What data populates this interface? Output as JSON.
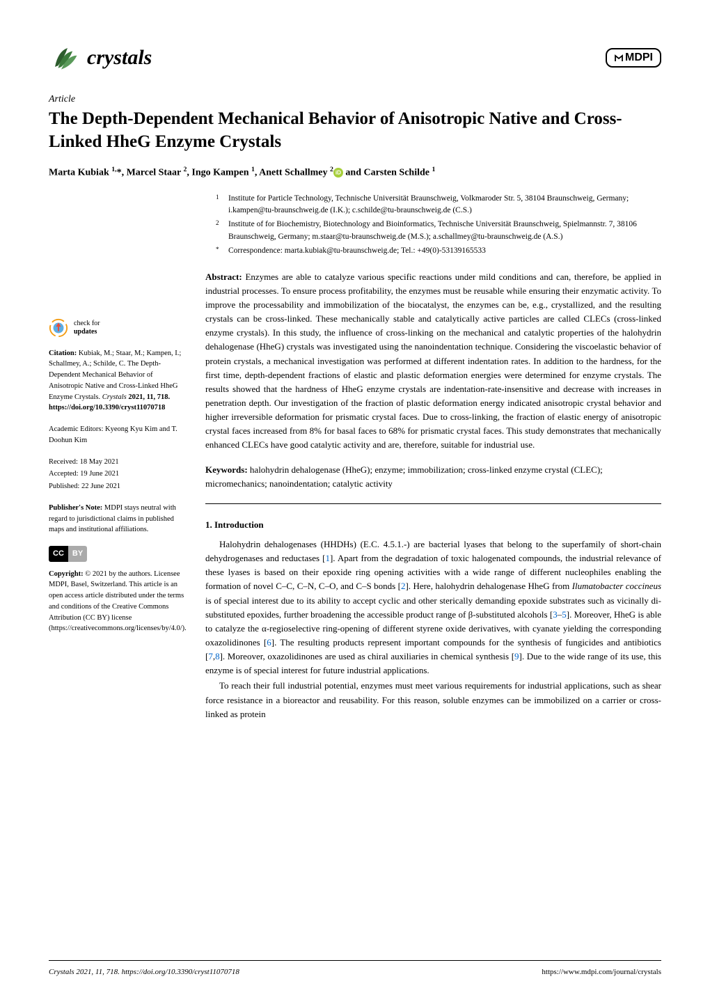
{
  "journal": {
    "name": "crystals",
    "publisher_logo": "MDPI"
  },
  "article": {
    "type": "Article",
    "title": "The Depth-Dependent Mechanical Behavior of Anisotropic Native and Cross-Linked HheG Enzyme Crystals",
    "authors_html": "Marta Kubiak <sup>1,</sup>*, Marcel Staar <sup>2</sup>, Ingo Kampen <sup>1</sup>, Anett Schallmey <sup>2</sup><span class='orcid'></span> and Carsten Schilde <sup>1</sup>"
  },
  "affiliations": [
    {
      "num": "1",
      "text": "Institute for Particle Technology, Technische Universität Braunschweig, Volkmaroder Str. 5, 38104 Braunschweig, Germany; i.kampen@tu-braunschweig.de (I.K.); c.schilde@tu-braunschweig.de (C.S.)"
    },
    {
      "num": "2",
      "text": "Institute of for Biochemistry, Biotechnology and Bioinformatics, Technische Universität Braunschweig, Spielmannstr. 7, 38106 Braunschweig, Germany; m.staar@tu-braunschweig.de (M.S.); a.schallmey@tu-braunschweig.de (A.S.)"
    },
    {
      "num": "*",
      "text": "Correspondence: marta.kubiak@tu-braunschweig.de; Tel.: +49(0)-53139165533"
    }
  ],
  "abstract": {
    "label": "Abstract:",
    "text": "Enzymes are able to catalyze various specific reactions under mild conditions and can, therefore, be applied in industrial processes. To ensure process profitability, the enzymes must be reusable while ensuring their enzymatic activity. To improve the processability and immobilization of the biocatalyst, the enzymes can be, e.g., crystallized, and the resulting crystals can be cross-linked. These mechanically stable and catalytically active particles are called CLECs (cross-linked enzyme crystals). In this study, the influence of cross-linking on the mechanical and catalytic properties of the halohydrin dehalogenase (HheG) crystals was investigated using the nanoindentation technique. Considering the viscoelastic behavior of protein crystals, a mechanical investigation was performed at different indentation rates. In addition to the hardness, for the first time, depth-dependent fractions of elastic and plastic deformation energies were determined for enzyme crystals. The results showed that the hardness of HheG enzyme crystals are indentation-rate-insensitive and decrease with increases in penetration depth. Our investigation of the fraction of plastic deformation energy indicated anisotropic crystal behavior and higher irreversible deformation for prismatic crystal faces. Due to cross-linking, the fraction of elastic energy of anisotropic crystal faces increased from 8% for basal faces to 68% for prismatic crystal faces. This study demonstrates that mechanically enhanced CLECs have good catalytic activity and are, therefore, suitable for industrial use."
  },
  "keywords": {
    "label": "Keywords:",
    "text": "halohydrin dehalogenase (HheG); enzyme; immobilization; cross-linked enzyme crystal (CLEC); micromechanics; nanoindentation; catalytic activity"
  },
  "section": {
    "heading": "1. Introduction",
    "para1_html": "Halohydrin dehalogenases (HHDHs) (E.C. 4.5.1.-) are bacterial lyases that belong to the superfamily of short-chain dehydrogenases and reductases [<span class='ref-link'>1</span>]. Apart from the degradation of toxic halogenated compounds, the industrial relevance of these lyases is based on their epoxide ring opening activities with a wide range of different nucleophiles enabling the formation of novel C–C, C–N, C–O, and C–S bonds [<span class='ref-link'>2</span>]. Here, halohydrin dehalogenase HheG from <span class='italic'>Ilumatobacter coccineus</span> is of special interest due to its ability to accept cyclic and other sterically demanding epoxide substrates such as vicinally di-substituted epoxides, further broadening the accessible product range of β-substituted alcohols [<span class='ref-link'>3</span>–<span class='ref-link'>5</span>]. Moreover, HheG is able to catalyze the α-regioselective ring-opening of different styrene oxide derivatives, with cyanate yielding the corresponding oxazolidinones [<span class='ref-link'>6</span>]. The resulting products represent important compounds for the synthesis of fungicides and antibiotics [<span class='ref-link'>7</span>,<span class='ref-link'>8</span>]. Moreover, oxazolidinones are used as chiral auxiliaries in chemical synthesis [<span class='ref-link'>9</span>]. Due to the wide range of its use, this enzyme is of special interest for future industrial applications.",
    "para2_html": "To reach their full industrial potential, enzymes must meet various requirements for industrial applications, such as shear force resistance in a bioreactor and reusability. For this reason, soluble enzymes can be immobilized on a carrier or cross-linked as protein"
  },
  "sidebar": {
    "check_updates": {
      "line1": "check for",
      "line2": "updates"
    },
    "citation": {
      "label": "Citation:",
      "text": "Kubiak, M.; Staar, M.; Kampen, I.; Schallmey, A.; Schilde, C. The Depth-Dependent Mechanical Behavior of Anisotropic Native and Cross-Linked HheG Enzyme Crystals. ",
      "journal_ref": "Crystals",
      "year_vol": " 2021, 11, 718. https://doi.org/10.3390/cryst11070718"
    },
    "editors": "Academic Editors: Kyeong Kyu Kim and T. Doohun Kim",
    "received": "Received: 18 May 2021",
    "accepted": "Accepted: 19 June 2021",
    "published": "Published: 22 June 2021",
    "publisher_note": {
      "label": "Publisher's Note:",
      "text": "MDPI stays neutral with regard to jurisdictional claims in published maps and institutional affiliations."
    },
    "cc": "CC",
    "by": "BY",
    "copyright": {
      "label": "Copyright:",
      "text": "© 2021 by the authors. Licensee MDPI, Basel, Switzerland. This article is an open access article distributed under the terms and conditions of the Creative Commons Attribution (CC BY) license (https://creativecommons.org/licenses/by/4.0/)."
    }
  },
  "footer": {
    "left": "Crystals 2021, 11, 718. https://doi.org/10.3390/cryst11070718",
    "right": "https://www.mdpi.com/journal/crystals"
  },
  "colors": {
    "text": "#000000",
    "background": "#ffffff",
    "link": "#0066cc",
    "orcid": "#a6ce39",
    "leaf1": "#3b7a3b",
    "leaf2": "#2d5c2d",
    "leaf3": "#5a9a5a",
    "check_arrow": "#e74c3c",
    "check_circle": "#5dade2",
    "check_ring": "#f39c12"
  }
}
